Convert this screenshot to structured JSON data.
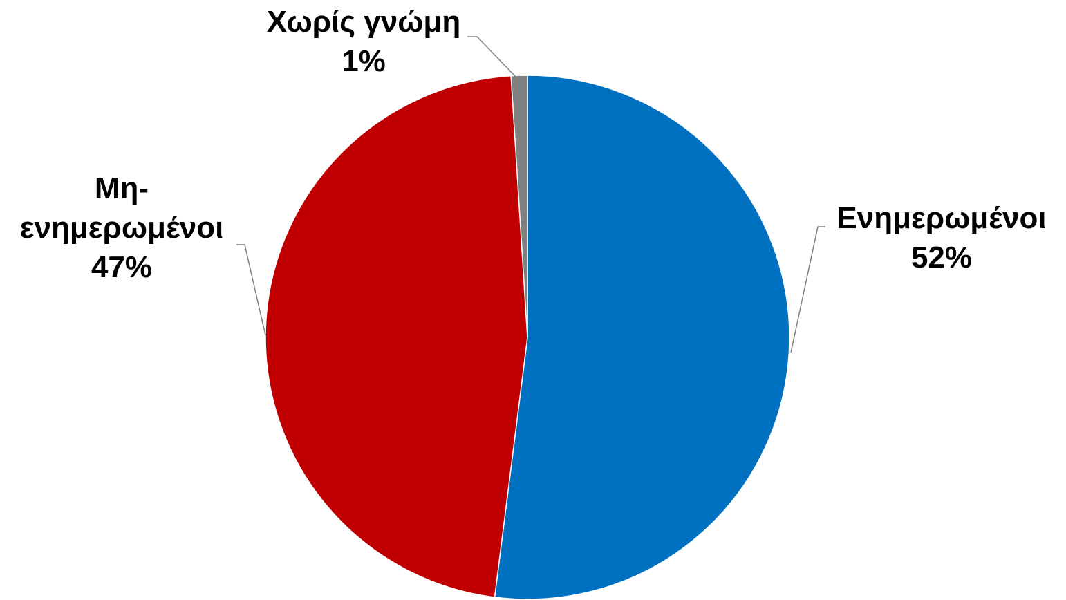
{
  "chart_data": {
    "type": "pie",
    "title": "",
    "labels": [
      "Ενημερωμένοι",
      "Μη-ενημερωμένοι",
      "Χωρίς γνώμη"
    ],
    "values": [
      52,
      47,
      1
    ],
    "unit": "%",
    "data_labels": [
      {
        "lines": [
          "Ενημερωμένοι",
          "52%"
        ]
      },
      {
        "lines": [
          "Μη-",
          "ενημερωμένοι",
          "47%"
        ]
      },
      {
        "lines": [
          "Χωρίς γνώμη",
          "1%"
        ]
      }
    ],
    "colors": [
      "#0070C0",
      "#C00000",
      "#808080"
    ],
    "start": "12 o'clock",
    "direction": "clockwise",
    "legend": "none",
    "label_position": "outside with leader lines"
  }
}
